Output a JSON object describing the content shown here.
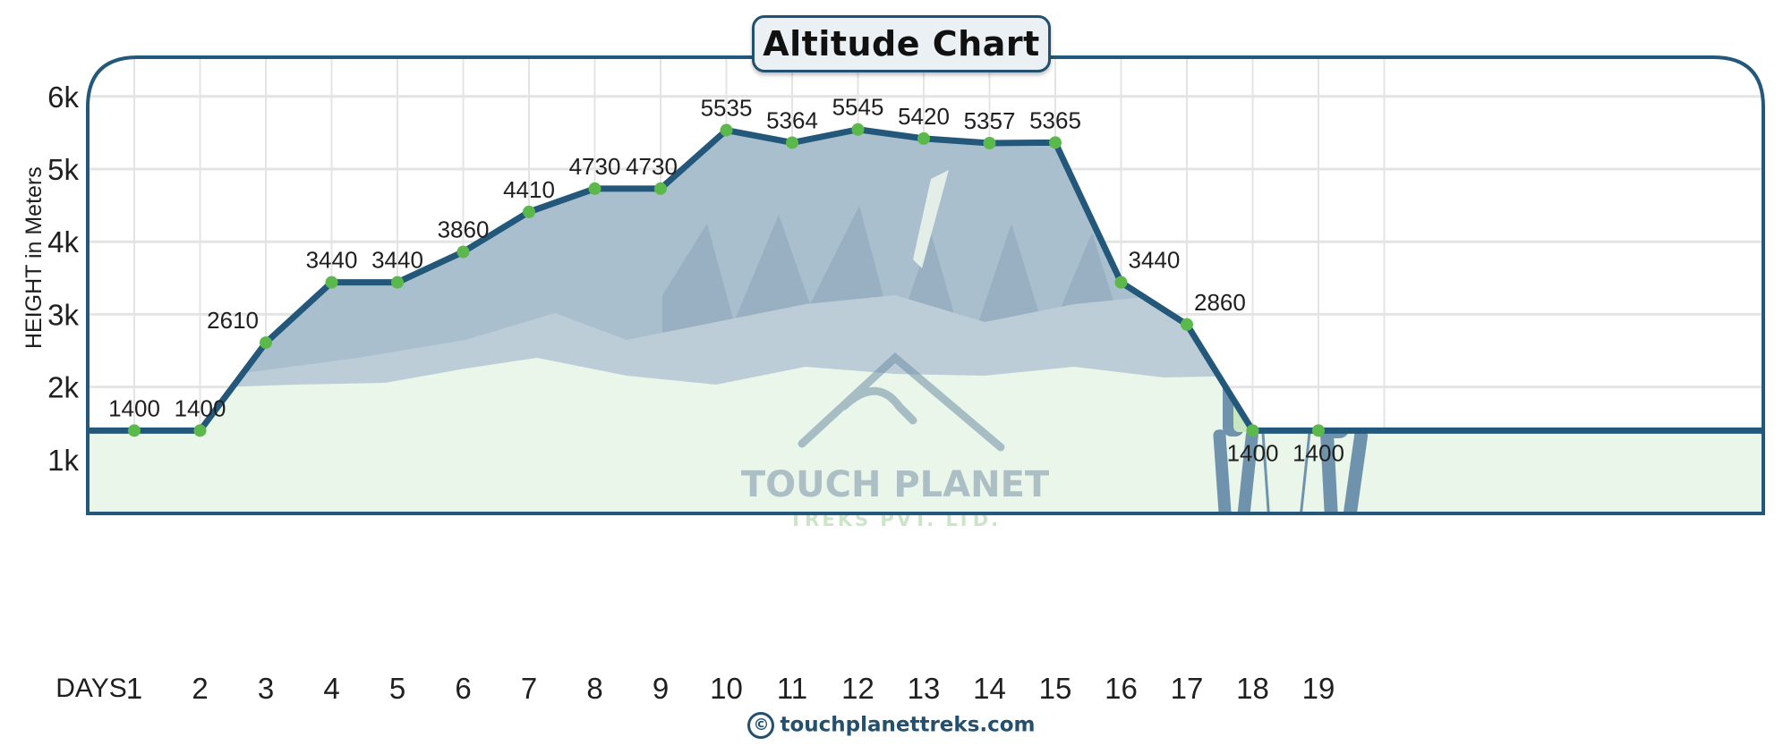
{
  "title": "Altitude Chart",
  "y_axis_label": "HEIGHT in Meters",
  "x_axis_label": "DAYS",
  "footer": {
    "copyright_symbol": "©",
    "website": "touchplanettreks.com"
  },
  "watermark": {
    "line1": "TOUCH PLANET",
    "line2": "TREKS  PVT. LTD."
  },
  "colors": {
    "line": "#23587a",
    "frame": "#23587a",
    "marker": "#5bb84a",
    "mountain_fill": "#a9bfcd",
    "snow_fill": "#eaf6ea",
    "grid": "#e6e6e6",
    "footer_text": "#23506e"
  },
  "chart_data": {
    "type": "line",
    "title": "Altitude Chart",
    "xlabel": "DAYS",
    "ylabel": "HEIGHT in Meters",
    "categories": [
      "1",
      "2",
      "3",
      "4",
      "5",
      "6",
      "7",
      "8",
      "9",
      "10",
      "11",
      "12",
      "13",
      "14",
      "15",
      "16",
      "17",
      "18",
      "19"
    ],
    "values": [
      1400,
      1400,
      2610,
      3440,
      3440,
      3860,
      4410,
      4730,
      4730,
      5535,
      5364,
      5545,
      5420,
      5357,
      5365,
      3440,
      2860,
      1400,
      1400
    ],
    "y_ticks": [
      "1k",
      "2k",
      "3k",
      "4k",
      "5k",
      "6k"
    ],
    "y_tick_values": [
      1000,
      2000,
      3000,
      4000,
      5000,
      6000
    ],
    "ylim": [
      260,
      6550
    ],
    "grid": true,
    "legend": "none",
    "data_labels": true
  }
}
